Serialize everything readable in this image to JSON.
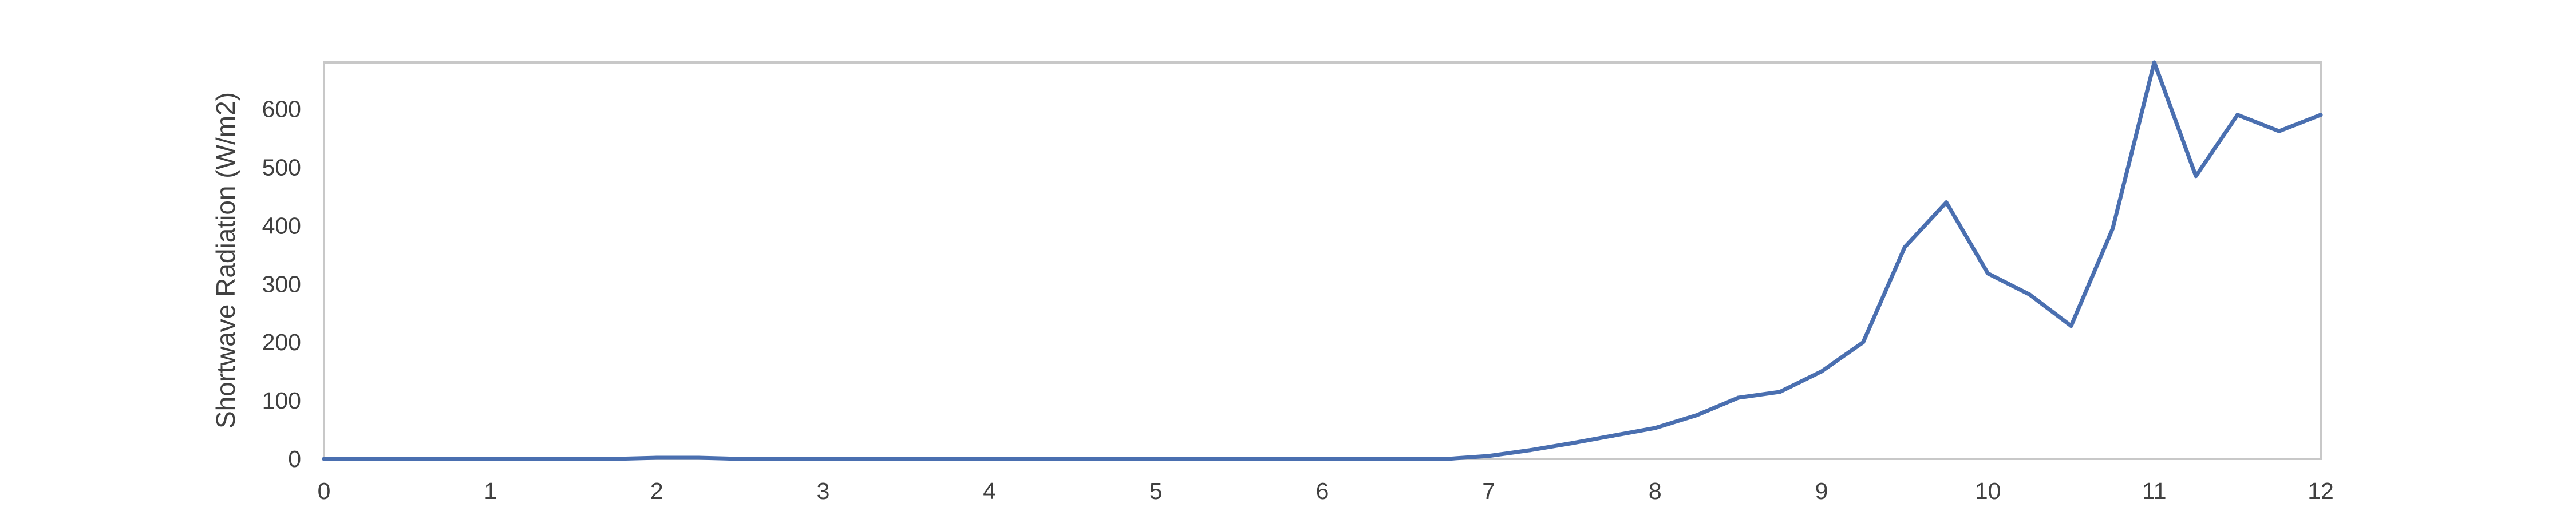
{
  "chart_data": {
    "type": "line",
    "title": "",
    "xlabel": "",
    "ylabel": "Shortwave Radiation (W/m2)",
    "xlim": [
      0,
      12
    ],
    "ylim": [
      0,
      680
    ],
    "x_ticks": [
      0,
      1,
      2,
      3,
      4,
      5,
      6,
      7,
      8,
      9,
      10,
      11,
      12
    ],
    "y_ticks": [
      0,
      100,
      200,
      300,
      400,
      500,
      600
    ],
    "grid": false,
    "legend": "none",
    "colors": {
      "line": "#4a6fb0",
      "frame": "#c8c8c8",
      "text": "#404040"
    },
    "series": [
      {
        "x": [
          0,
          0.25,
          0.5,
          0.75,
          1,
          1.25,
          1.5,
          1.75,
          2,
          2.25,
          2.5,
          2.75,
          3,
          3.25,
          3.5,
          3.75,
          4,
          4.25,
          4.5,
          4.75,
          5,
          5.25,
          5.5,
          5.75,
          6,
          6.25,
          6.5,
          6.75,
          7,
          7.25,
          7.5,
          7.75,
          8,
          8.25,
          8.5,
          8.75,
          9,
          9.25,
          9.5,
          9.75,
          10,
          10.25,
          10.5,
          10.75,
          11,
          11.25,
          11.5,
          11.75,
          12
        ],
        "values": [
          0,
          0,
          0,
          0,
          0,
          0,
          0,
          0,
          2,
          2,
          0,
          0,
          0,
          0,
          0,
          0,
          0,
          0,
          0,
          0,
          0,
          0,
          0,
          0,
          0,
          0,
          0,
          0,
          5,
          15,
          27,
          40,
          53,
          75,
          105,
          115,
          150,
          200,
          363,
          440,
          318,
          282,
          228,
          395,
          680,
          485,
          590,
          562,
          590
        ]
      }
    ]
  }
}
